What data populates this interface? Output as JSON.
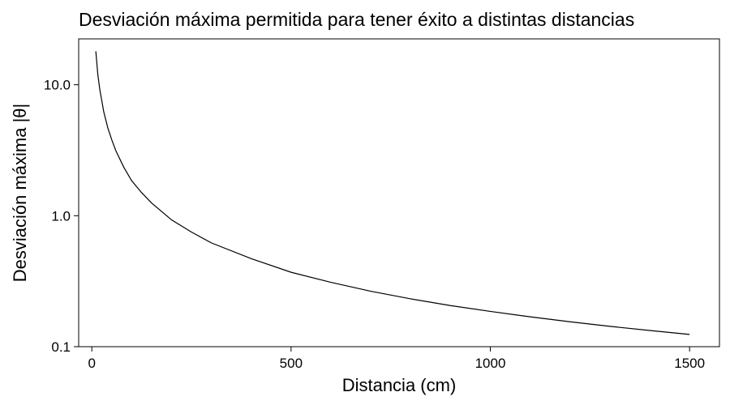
{
  "chart_data": {
    "type": "line",
    "title": "Desviación máxima permitida para tener éxito a distintas distancias",
    "xlabel": "Distancia (cm)",
    "ylabel": "Desviación máxima |θ|",
    "xlim": [
      -33,
      1575
    ],
    "ylim": [
      0.1,
      22.4
    ],
    "y_scale": "log",
    "x_ticks": [
      0,
      500,
      1000,
      1500
    ],
    "x_tick_labels": [
      "0",
      "500",
      "1000",
      "1500"
    ],
    "y_ticks": [
      0.1,
      1,
      10
    ],
    "y_tick_labels": [
      "0.1",
      "1.0",
      "10.0"
    ],
    "grid": false,
    "legend": "none",
    "line_color": "#000000",
    "series": [
      {
        "x": [
          10,
          15,
          20,
          30,
          40,
          50,
          60,
          80,
          100,
          125,
          150,
          200,
          250,
          300,
          400,
          500,
          600,
          700,
          800,
          900,
          1000,
          1100,
          1200,
          1300,
          1400,
          1500
        ],
        "y": [
          18.0,
          12.0,
          9.2,
          6.2,
          4.7,
          3.8,
          3.15,
          2.35,
          1.85,
          1.5,
          1.25,
          0.93,
          0.75,
          0.62,
          0.47,
          0.37,
          0.31,
          0.265,
          0.232,
          0.206,
          0.186,
          0.169,
          0.155,
          0.143,
          0.133,
          0.124
        ]
      }
    ]
  }
}
